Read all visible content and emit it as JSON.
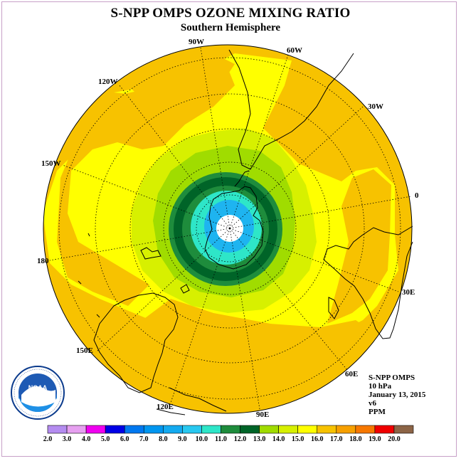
{
  "header": {
    "title": "S-NPP OMPS OZONE MIXING RATIO",
    "subtitle": "Southern Hemisphere"
  },
  "map": {
    "projection": "south polar stereographic",
    "longitude_labels": [
      "90W",
      "60W",
      "30W",
      "0",
      "30E",
      "60E",
      "90E",
      "120E",
      "150E",
      "180",
      "150W",
      "120W"
    ],
    "contour_levels": [
      {
        "label": "outer",
        "range_ppm": [
          15.0,
          16.0
        ],
        "color": "#f7c200"
      },
      {
        "range_ppm": [
          14.0,
          15.0
        ],
        "color": "#ffff00"
      },
      {
        "range_ppm": [
          13.0,
          14.0
        ],
        "color": "#d7f000"
      },
      {
        "range_ppm": [
          12.0,
          13.0
        ],
        "color": "#a0dc00"
      },
      {
        "range_ppm": [
          11.0,
          12.0
        ],
        "color": "#1e8c3c"
      },
      {
        "range_ppm": [
          10.0,
          11.0
        ],
        "color": "#006428"
      },
      {
        "range_ppm": [
          9.0,
          10.0
        ],
        "color": "#1e8c3c"
      },
      {
        "range_ppm": [
          8.0,
          9.0
        ],
        "color": "#2ee6c8"
      },
      {
        "range_ppm": [
          7.0,
          8.0
        ],
        "color": "#1eb4f0"
      }
    ]
  },
  "info": {
    "product": "S-NPP OMPS",
    "level": "10 hPa",
    "date": "January 13, 2015",
    "version": "v6",
    "units": "PPM"
  },
  "colorbar": {
    "labels": [
      "2.0",
      "3.0",
      "4.0",
      "5.0",
      "6.0",
      "7.0",
      "8.0",
      "9.0",
      "10.0",
      "11.0",
      "12.0",
      "13.0",
      "14.0",
      "15.0",
      "16.0",
      "17.0",
      "18.0",
      "19.0",
      "20.0"
    ],
    "colors": [
      "#b48cf0",
      "#e6a0f0",
      "#f000f0",
      "#0000e6",
      "#0078f0",
      "#0096f0",
      "#14aaf0",
      "#28c8f0",
      "#2ee6c8",
      "#1e8c3c",
      "#006428",
      "#a0dc00",
      "#d7f000",
      "#ffff00",
      "#f7c200",
      "#f7a000",
      "#f77800",
      "#f00000",
      "#8c6446"
    ]
  },
  "logo": {
    "text": "NOAA",
    "ring_text": "NATIONAL OCEANIC AND ATMOSPHERIC ADMINISTRATION · U.S. DEPARTMENT OF COMMERCE"
  }
}
